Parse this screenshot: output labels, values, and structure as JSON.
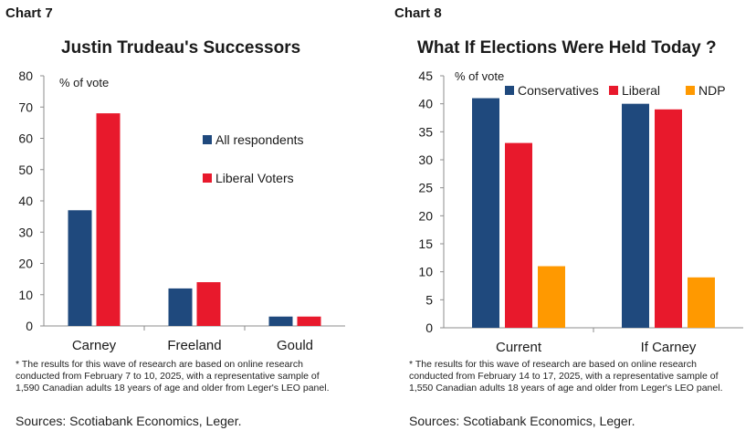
{
  "chart_data": [
    {
      "chart_label": "Chart 7",
      "type": "bar",
      "title": "Justin Trudeau's Successors",
      "ylabel": "% of vote",
      "categories": [
        "Carney",
        "Freeland",
        "Gould"
      ],
      "series": [
        {
          "name": "All respondents",
          "values": [
            37,
            12,
            3
          ],
          "color": "#1f497d"
        },
        {
          "name": "Liberal Voters",
          "values": [
            68,
            14,
            3
          ],
          "color": "#e8192c"
        }
      ],
      "ylim": [
        0,
        80
      ],
      "yticks": [
        0,
        10,
        20,
        30,
        40,
        50,
        60,
        70,
        80
      ],
      "legend_position": "right",
      "grid": false,
      "footnote": "* The results for this wave of research are based on online research conducted from February 7 to 10, 2025, with a representative sample of 1,590 Canadian adults 18 years of age and older from Leger's LEO panel.",
      "sources": "Sources: Scotiabank Economics, Leger."
    },
    {
      "chart_label": "Chart 8",
      "type": "bar",
      "title": "What If Elections Were Held Today ?",
      "ylabel": "% of vote",
      "categories": [
        "Current",
        "If Carney"
      ],
      "series": [
        {
          "name": "Conservatives",
          "values": [
            41,
            40
          ],
          "color": "#1f497d"
        },
        {
          "name": "Liberal",
          "values": [
            33,
            39
          ],
          "color": "#e8192c"
        },
        {
          "name": "NDP",
          "values": [
            11,
            9
          ],
          "color": "#ff9900"
        }
      ],
      "ylim": [
        0,
        45
      ],
      "yticks": [
        0,
        5,
        10,
        15,
        20,
        25,
        30,
        35,
        40,
        45
      ],
      "legend_position": "top",
      "grid": false,
      "footnote": "* The results for this wave of research are based on online research conducted from February 14 to 17, 2025, with a representative sample of 1,550 Canadian adults 18 years of age and older from Leger's LEO panel.",
      "sources": "Sources: Scotiabank Economics, Leger."
    }
  ]
}
